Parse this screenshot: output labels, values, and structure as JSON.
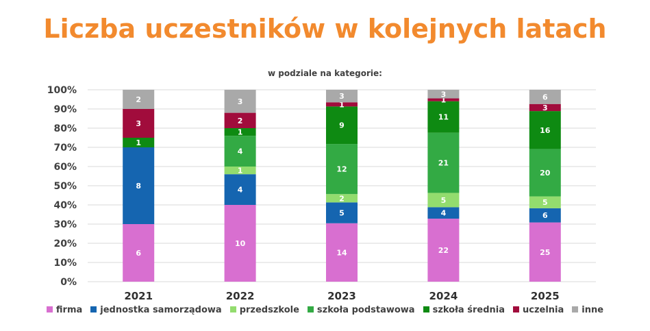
{
  "chart_data": {
    "type": "bar",
    "stacking": "percent",
    "title": "Liczba uczestników w kolejnych latach",
    "subtitle": "w podziale na kategorie:",
    "categories": [
      "2021",
      "2022",
      "2023",
      "2024",
      "2025"
    ],
    "yticks": [
      "0%",
      "10%",
      "20%",
      "30%",
      "40%",
      "50%",
      "60%",
      "70%",
      "80%",
      "90%",
      "100%"
    ],
    "ylim": [
      0,
      100
    ],
    "xlabel": "",
    "ylabel": "",
    "grid": true,
    "legend_position": "bottom",
    "series": [
      {
        "name": "firma",
        "color": "#d86fd0",
        "values": [
          6,
          10,
          14,
          22,
          25
        ]
      },
      {
        "name": "jednostka samorządowa",
        "color": "#1565b0",
        "values": [
          8,
          4,
          5,
          4,
          6
        ]
      },
      {
        "name": "przedszkole",
        "color": "#93dc6e",
        "values": [
          0,
          1,
          2,
          5,
          5
        ]
      },
      {
        "name": "szkoła podstawowa",
        "color": "#33aa44",
        "values": [
          0,
          4,
          12,
          21,
          20
        ]
      },
      {
        "name": "szkoła średnia",
        "color": "#0e8a12",
        "values": [
          1,
          1,
          9,
          11,
          16
        ]
      },
      {
        "name": "uczelnia",
        "color": "#a10c3c",
        "values": [
          3,
          2,
          1,
          1,
          3
        ]
      },
      {
        "name": "inne",
        "color": "#a9a9a9",
        "values": [
          2,
          3,
          3,
          3,
          6
        ]
      }
    ]
  }
}
